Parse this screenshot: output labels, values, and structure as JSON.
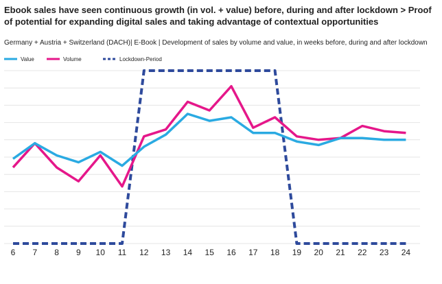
{
  "title": "Ebook sales have seen continuous growth (in vol. + value) before, during and after lockdown > Proof of potential for expanding digital sales and taking advantage of contextual opportunities",
  "subtitle": "Germany + Austria + Switzerland (DACH)| E-Book | Development of sales by volume and value, in weeks before, during and after lockdown",
  "chart_data": {
    "type": "line",
    "x": [
      "6",
      "7",
      "8",
      "9",
      "10",
      "11",
      "12",
      "13",
      "14",
      "15",
      "16",
      "17",
      "18",
      "19",
      "20",
      "21",
      "22",
      "23",
      "24"
    ],
    "xlabel": "",
    "ylabel": "",
    "ylim": [
      0,
      100
    ],
    "grid": true,
    "legend": "top-left",
    "series": [
      {
        "name": "Value",
        "color": "#2aaae2",
        "style": "solid",
        "values": [
          49,
          58,
          51,
          47,
          53,
          45,
          56,
          63,
          75,
          71,
          73,
          64,
          64,
          59,
          57,
          61,
          61,
          60,
          60
        ]
      },
      {
        "name": "Volume",
        "color": "#e5178a",
        "style": "solid",
        "values": [
          44,
          58,
          44,
          36,
          51,
          33,
          62,
          66,
          82,
          77,
          91,
          67,
          73,
          62,
          60,
          61,
          68,
          65,
          64
        ]
      },
      {
        "name": "Lockdown-Period",
        "color": "#2e4a9c",
        "style": "dashed",
        "values": [
          0,
          0,
          0,
          0,
          0,
          0,
          100,
          100,
          100,
          100,
          100,
          100,
          100,
          0,
          0,
          0,
          0,
          0,
          0
        ]
      }
    ]
  }
}
